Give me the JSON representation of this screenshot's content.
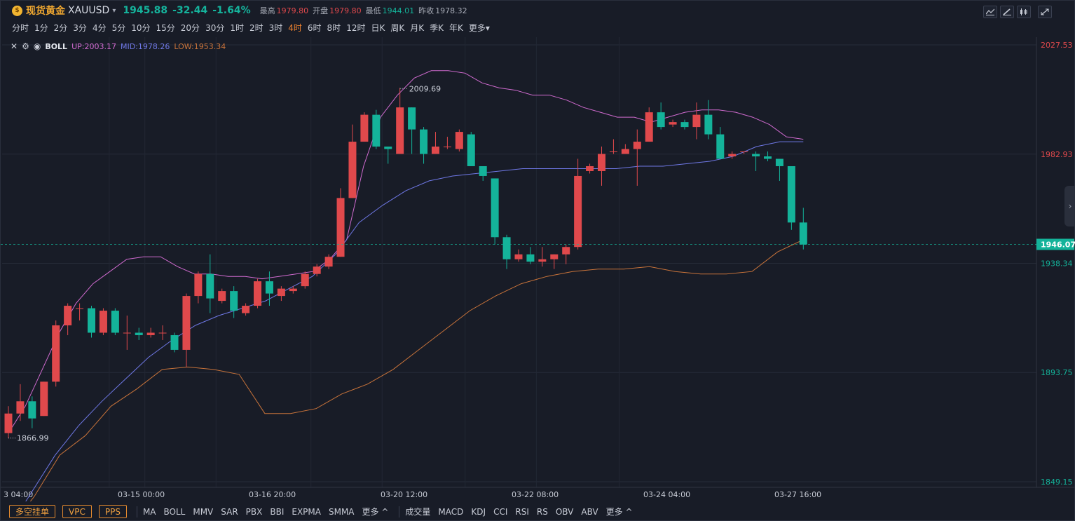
{
  "header": {
    "coin_icon": "gold-coin-icon",
    "symbol_name": "现货黄金",
    "symbol_code": "XAUUSD",
    "last_price": "1945.88",
    "change": "-32.44",
    "change_pct": "-1.64%",
    "high_label": "最高",
    "high_value": "1979.80",
    "open_label": "开盘",
    "open_value": "1979.80",
    "low_label": "最低",
    "low_value": "1944.01",
    "prev_close_label": "昨收",
    "prev_close_value": "1978.32"
  },
  "toolbar": {
    "tools": [
      "indicator-icon",
      "draw-icon",
      "candle-type-icon",
      "fullscreen-icon"
    ]
  },
  "intervals": {
    "items": [
      "分时",
      "1分",
      "2分",
      "3分",
      "4分",
      "5分",
      "10分",
      "15分",
      "20分",
      "30分",
      "1时",
      "2时",
      "3时",
      "4时",
      "6时",
      "8时",
      "12时",
      "日K",
      "周K",
      "月K",
      "季K",
      "年K",
      "更多"
    ],
    "active": "4时",
    "more_caret": "▾"
  },
  "indicator_legend": {
    "name": "BOLL",
    "up": "UP:2003.17",
    "mid": "MID:1978.26",
    "low": "LOW:1953.34"
  },
  "bottom": {
    "order_buttons": [
      "多空挂单",
      "VPC",
      "PPS"
    ],
    "main_indicators": [
      "MA",
      "BOLL",
      "MMV",
      "SAR",
      "PBX",
      "BBI",
      "EXPMA",
      "SMMA",
      "更多 ^"
    ],
    "sub_indicators": [
      "成交量",
      "MACD",
      "KDJ",
      "CCI",
      "RSI",
      "RS",
      "OBV",
      "ABV",
      "更多 ^"
    ]
  },
  "chart_data": {
    "type": "candlestick",
    "y_ticks": [
      2027.53,
      1982.93,
      1938.34,
      1893.75,
      1849.15
    ],
    "current_price_label": "1946.07",
    "x_tick_labels": [
      "3 04:00",
      "03-15 00:00",
      "03-16 20:00",
      "03-20 12:00",
      "03-22 08:00",
      "03-24 04:00",
      "03-27 16:00"
    ],
    "high_annotation": "2009.69",
    "low_annotation": "1866.99",
    "colors": {
      "up": "#e0494c",
      "down": "#14b39a",
      "boll_up": "#d16bd0",
      "boll_mid": "#6f78e6",
      "boll_low": "#c8733a"
    },
    "candles": [
      [
        1869,
        1877,
        1867,
        1880
      ],
      [
        1877,
        1882,
        1874,
        1889
      ],
      [
        1882,
        1875,
        1871,
        1884
      ],
      [
        1876,
        1890,
        1876,
        1890
      ],
      [
        1890,
        1913,
        1888,
        1915
      ],
      [
        1913,
        1921,
        1909,
        1922
      ],
      [
        1920,
        1920,
        1915,
        1922
      ],
      [
        1920,
        1910,
        1908,
        1921
      ],
      [
        1910,
        1919,
        1909,
        1920
      ],
      [
        1919,
        1910,
        1909,
        1920
      ],
      [
        1910,
        1910,
        1903,
        1917
      ],
      [
        1910,
        1909,
        1907,
        1912
      ],
      [
        1909,
        1910,
        1908,
        1912
      ],
      [
        1910,
        1910,
        1907,
        1913
      ],
      [
        1909,
        1903,
        1902,
        1910
      ],
      [
        1903,
        1925,
        1896,
        1926
      ],
      [
        1925,
        1934,
        1922,
        1935
      ],
      [
        1934,
        1924,
        1918,
        1942
      ],
      [
        1923,
        1927,
        1922,
        1928
      ],
      [
        1927,
        1919,
        1916,
        1929
      ],
      [
        1918,
        1921,
        1917,
        1922
      ],
      [
        1921,
        1931,
        1920,
        1932
      ],
      [
        1931,
        1926,
        1921,
        1935
      ],
      [
        1925,
        1928,
        1923,
        1929
      ],
      [
        1927,
        1928,
        1926,
        1929
      ],
      [
        1929,
        1934,
        1928,
        1935
      ],
      [
        1934,
        1937,
        1933,
        1938
      ],
      [
        1937,
        1941,
        1936,
        1942
      ],
      [
        1941,
        1965,
        1941,
        1969
      ],
      [
        1965,
        1988,
        1965,
        1995
      ],
      [
        1988,
        1999,
        1988,
        2000
      ],
      [
        1999,
        1986,
        1985,
        2001
      ],
      [
        1986,
        1985,
        1979,
        1986
      ],
      [
        1983,
        2002,
        1983,
        2010
      ],
      [
        2002,
        1993,
        1983,
        2002
      ],
      [
        1993,
        1983,
        1979,
        1994
      ],
      [
        1983,
        1986,
        1983,
        1992
      ],
      [
        1986,
        1986,
        1985,
        1990
      ],
      [
        1985,
        1992,
        1984,
        1993
      ],
      [
        1991,
        1978,
        1978,
        1992
      ],
      [
        1978,
        1974,
        1972,
        1978
      ],
      [
        1973,
        1949,
        1946,
        1973
      ],
      [
        1949,
        1940,
        1936,
        1950
      ],
      [
        1940,
        1942,
        1939,
        1944
      ],
      [
        1942,
        1939,
        1938,
        1945
      ],
      [
        1939,
        1940,
        1937,
        1945
      ],
      [
        1940,
        1942,
        1936,
        1942
      ],
      [
        1942,
        1945,
        1938,
        1946
      ],
      [
        1945,
        1974,
        1944,
        1981
      ],
      [
        1976,
        1978,
        1975,
        1979
      ],
      [
        1976,
        1983,
        1970,
        1986
      ],
      [
        1984,
        1984,
        1983,
        1989
      ],
      [
        1983,
        1985,
        1984,
        1987
      ],
      [
        1985,
        1988,
        1970,
        1993
      ],
      [
        1988,
        2000,
        1988,
        2002
      ],
      [
        2000,
        1994,
        1993,
        2004
      ],
      [
        1995,
        1996,
        1994,
        1997
      ],
      [
        1996,
        1994,
        1993,
        1997
      ],
      [
        1994,
        1999,
        1989,
        2004
      ],
      [
        1999,
        1991,
        1989,
        2005
      ],
      [
        1991,
        1981,
        1981,
        1994
      ],
      [
        1982,
        1983,
        1981,
        1984
      ],
      [
        1984,
        1984,
        1983,
        1984
      ],
      [
        1983,
        1982,
        1976,
        1984
      ],
      [
        1982,
        1981,
        1980,
        1984
      ],
      [
        1981,
        1978,
        1972,
        1981
      ],
      [
        1978,
        1955,
        1952,
        1978
      ],
      [
        1955,
        1946,
        1944,
        1961
      ]
    ],
    "boll": {
      "up": [
        1869,
        1880,
        1895,
        1910,
        1922,
        1930,
        1935,
        1940,
        1941,
        1941,
        1937,
        1934,
        1934,
        1933,
        1933,
        1932,
        1933,
        1934,
        1935,
        1940,
        1948,
        1978,
        1998,
        2007,
        2014,
        2017,
        2017,
        2016,
        2012,
        2010,
        2009,
        2007,
        2007,
        2005,
        2002,
        2000,
        1998,
        1998,
        1996,
        1998,
        2000,
        2001,
        2001,
        2000,
        1998,
        1995,
        1990,
        1989
      ],
      "mid": [
        1830,
        1845,
        1860,
        1872,
        1882,
        1891,
        1900,
        1907,
        1913,
        1917,
        1920,
        1923,
        1928,
        1933,
        1942,
        1955,
        1962,
        1968,
        1972,
        1974,
        1975,
        1976,
        1977,
        1977,
        1977,
        1977,
        1977,
        1978,
        1978,
        1979,
        1980,
        1982,
        1986,
        1988,
        1988
      ],
      "low": [
        1830,
        1843,
        1860,
        1868,
        1880,
        1887,
        1895,
        1896,
        1895,
        1893,
        1877,
        1877,
        1879,
        1885,
        1889,
        1895,
        1903,
        1911,
        1919,
        1925,
        1930,
        1933,
        1935,
        1936,
        1936,
        1937,
        1935,
        1934,
        1934,
        1935,
        1943,
        1948
      ]
    }
  }
}
